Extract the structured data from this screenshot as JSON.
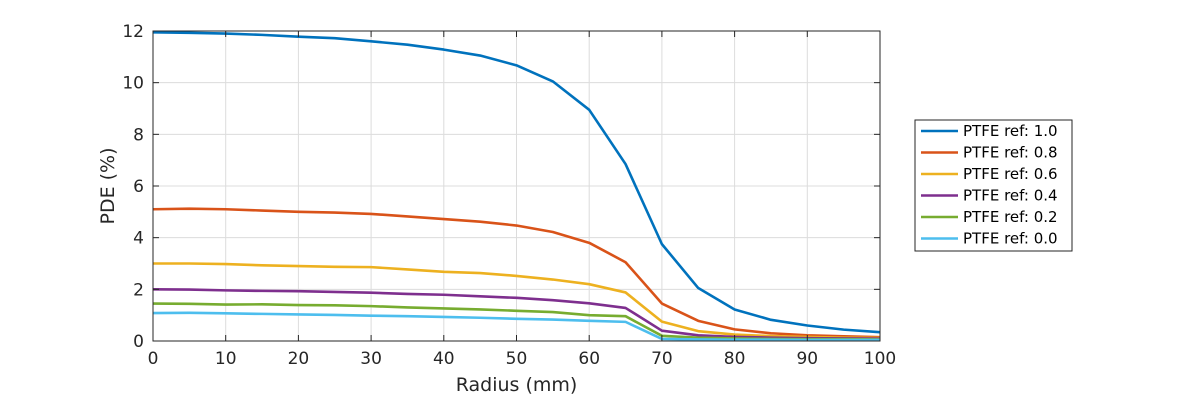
{
  "chart_data": {
    "type": "line",
    "xlabel": "Radius (mm)",
    "ylabel": "PDE (%)",
    "xlim": [
      0,
      100
    ],
    "ylim": [
      0,
      12
    ],
    "xticks": [
      0,
      10,
      20,
      30,
      40,
      50,
      60,
      70,
      80,
      90,
      100
    ],
    "yticks": [
      0,
      2,
      4,
      6,
      8,
      10,
      12
    ],
    "grid": true,
    "legend_position": "outside-right",
    "x": [
      0,
      5,
      10,
      15,
      20,
      25,
      30,
      35,
      40,
      45,
      50,
      55,
      60,
      65,
      70,
      75,
      80,
      85,
      90,
      95,
      100
    ],
    "series": [
      {
        "name": "PTFE ref: 1.0",
        "color": "#0072BD",
        "values": [
          11.95,
          11.93,
          11.9,
          11.85,
          11.78,
          11.72,
          11.6,
          11.47,
          11.28,
          11.05,
          10.67,
          10.05,
          8.95,
          6.85,
          3.75,
          2.05,
          1.22,
          0.82,
          0.6,
          0.44,
          0.34
        ]
      },
      {
        "name": "PTFE ref: 0.8",
        "color": "#D95319",
        "values": [
          5.1,
          5.12,
          5.1,
          5.05,
          5.0,
          4.97,
          4.92,
          4.82,
          4.72,
          4.62,
          4.47,
          4.22,
          3.8,
          3.05,
          1.45,
          0.78,
          0.45,
          0.3,
          0.22,
          0.18,
          0.15
        ]
      },
      {
        "name": "PTFE ref: 0.6",
        "color": "#EDB120",
        "values": [
          3.0,
          3.0,
          2.98,
          2.93,
          2.9,
          2.87,
          2.86,
          2.77,
          2.68,
          2.63,
          2.52,
          2.38,
          2.2,
          1.88,
          0.75,
          0.38,
          0.25,
          0.19,
          0.16,
          0.13,
          0.12
        ]
      },
      {
        "name": "PTFE ref: 0.4",
        "color": "#7E2F8E",
        "values": [
          2.0,
          1.99,
          1.96,
          1.94,
          1.93,
          1.9,
          1.87,
          1.82,
          1.79,
          1.73,
          1.67,
          1.58,
          1.46,
          1.28,
          0.4,
          0.22,
          0.16,
          0.13,
          0.11,
          0.1,
          0.09
        ]
      },
      {
        "name": "PTFE ref: 0.2",
        "color": "#77AC30",
        "values": [
          1.45,
          1.44,
          1.41,
          1.42,
          1.39,
          1.38,
          1.35,
          1.3,
          1.26,
          1.22,
          1.17,
          1.12,
          1.0,
          0.96,
          0.2,
          0.13,
          0.1,
          0.08,
          0.07,
          0.07,
          0.06
        ]
      },
      {
        "name": "PTFE ref: 0.0",
        "color": "#4DBEEE",
        "values": [
          1.08,
          1.09,
          1.07,
          1.05,
          1.03,
          1.01,
          0.98,
          0.96,
          0.93,
          0.9,
          0.86,
          0.83,
          0.78,
          0.74,
          0.08,
          0.06,
          0.05,
          0.05,
          0.04,
          0.04,
          0.04
        ]
      }
    ]
  }
}
